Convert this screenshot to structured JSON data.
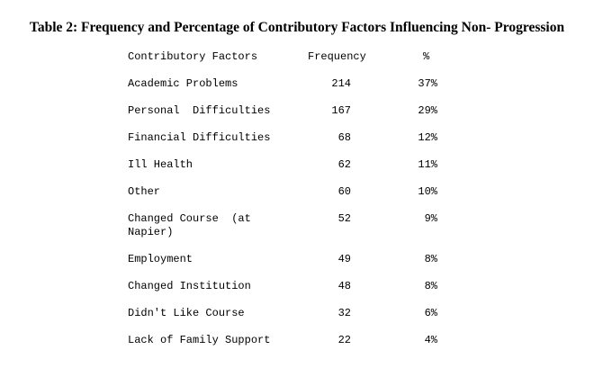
{
  "title": "Table 2: Frequency and Percentage of Contributory Factors Influencing Non- Progression",
  "table": {
    "headers": [
      "Contributory Factors",
      "Frequency",
      "%"
    ],
    "rows": [
      {
        "factor": "Academic Problems",
        "frequency": "214",
        "percent": "37%"
      },
      {
        "factor": "Personal  Difficulties",
        "frequency": "167",
        "percent": "29%"
      },
      {
        "factor": "Financial Difficulties",
        "frequency": "68",
        "percent": "12%"
      },
      {
        "factor": "Ill Health",
        "frequency": "62",
        "percent": "11%"
      },
      {
        "factor": "Other",
        "frequency": "60",
        "percent": "10%"
      },
      {
        "factor": "Changed Course  (at\nNapier)",
        "frequency": "52",
        "percent": "9%"
      },
      {
        "factor": "Employment",
        "frequency": "49",
        "percent": "8%"
      },
      {
        "factor": "Changed Institution",
        "frequency": "48",
        "percent": "8%"
      },
      {
        "factor": "Didn't Like Course",
        "frequency": "32",
        "percent": "6%"
      },
      {
        "factor": "Lack of Family Support",
        "frequency": "22",
        "percent": "4%"
      }
    ]
  }
}
